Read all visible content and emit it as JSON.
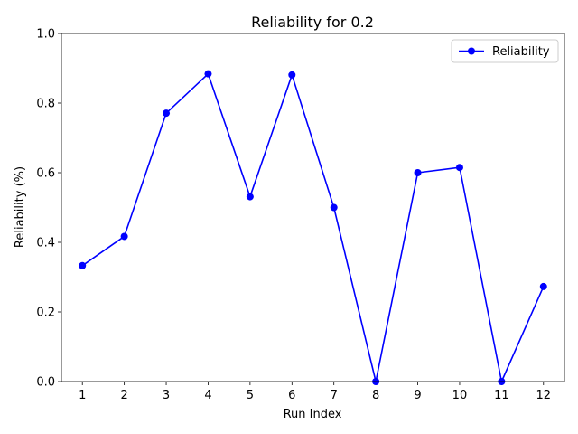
{
  "chart_data": {
    "type": "line",
    "title": "Reliability for 0.2",
    "xlabel": "Run Index",
    "ylabel": "Reliability (%)",
    "x": [
      1,
      2,
      3,
      4,
      5,
      6,
      7,
      8,
      9,
      10,
      11,
      12
    ],
    "xticks": [
      "1",
      "2",
      "3",
      "4",
      "5",
      "6",
      "7",
      "8",
      "9",
      "10",
      "11",
      "12"
    ],
    "ylim": [
      0,
      1.0
    ],
    "yticks": [
      "0.0",
      "0.2",
      "0.4",
      "0.6",
      "0.8",
      "1.0"
    ],
    "series": [
      {
        "name": "Reliability",
        "color": "#0000ff",
        "marker": "circle",
        "values": [
          0.333,
          0.417,
          0.771,
          0.884,
          0.531,
          0.881,
          0.5,
          0.0,
          0.6,
          0.615,
          0.0,
          0.273
        ]
      }
    ],
    "grid": false,
    "legend": "top-right"
  }
}
